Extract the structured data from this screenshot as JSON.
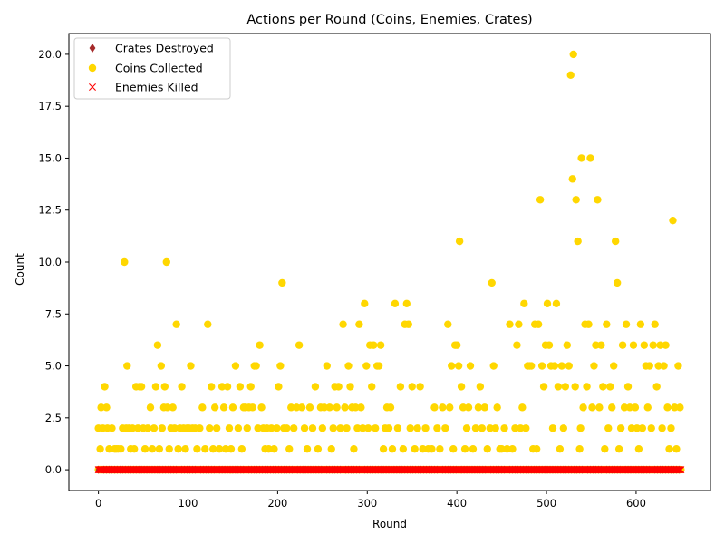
{
  "chart_data": {
    "type": "scatter",
    "title": "Actions per Round (Coins, Enemies, Crates)",
    "xlabel": "Round",
    "ylabel": "Count",
    "xlim": [
      -33,
      683
    ],
    "ylim": [
      -1,
      21
    ],
    "xticks": [
      0,
      100,
      200,
      300,
      400,
      500,
      600
    ],
    "yticks": [
      0.0,
      2.5,
      5.0,
      7.5,
      10.0,
      12.5,
      15.0,
      17.5,
      20.0
    ],
    "grid": false,
    "legend_position": "top-left",
    "x_range": [
      0,
      650
    ],
    "series": [
      {
        "name": "Crates Destroyed",
        "marker": "diamond",
        "color": "#a52a2a",
        "values_note": "constant",
        "constant": 0
      },
      {
        "name": "Coins Collected",
        "marker": "circle",
        "color": "#ffd700",
        "points": [
          [
            0,
            2
          ],
          [
            2,
            1
          ],
          [
            3,
            3
          ],
          [
            5,
            2
          ],
          [
            7,
            4
          ],
          [
            9,
            3
          ],
          [
            10,
            2
          ],
          [
            12,
            1
          ],
          [
            15,
            2
          ],
          [
            18,
            1
          ],
          [
            20,
            1
          ],
          [
            22,
            1
          ],
          [
            25,
            1
          ],
          [
            27,
            2
          ],
          [
            29,
            10
          ],
          [
            31,
            2
          ],
          [
            32,
            5
          ],
          [
            34,
            2
          ],
          [
            36,
            1
          ],
          [
            38,
            2
          ],
          [
            40,
            1
          ],
          [
            42,
            4
          ],
          [
            44,
            2
          ],
          [
            46,
            4
          ],
          [
            48,
            4
          ],
          [
            50,
            2
          ],
          [
            52,
            1
          ],
          [
            55,
            2
          ],
          [
            58,
            3
          ],
          [
            60,
            1
          ],
          [
            62,
            2
          ],
          [
            64,
            4
          ],
          [
            66,
            6
          ],
          [
            68,
            1
          ],
          [
            70,
            5
          ],
          [
            71,
            2
          ],
          [
            73,
            3
          ],
          [
            74,
            4
          ],
          [
            76,
            10
          ],
          [
            77,
            3
          ],
          [
            79,
            1
          ],
          [
            81,
            2
          ],
          [
            83,
            3
          ],
          [
            85,
            2
          ],
          [
            87,
            7
          ],
          [
            89,
            1
          ],
          [
            91,
            2
          ],
          [
            93,
            4
          ],
          [
            95,
            2
          ],
          [
            97,
            1
          ],
          [
            99,
            2
          ],
          [
            101,
            2
          ],
          [
            103,
            5
          ],
          [
            105,
            2
          ],
          [
            108,
            2
          ],
          [
            110,
            1
          ],
          [
            113,
            2
          ],
          [
            116,
            3
          ],
          [
            119,
            1
          ],
          [
            122,
            7
          ],
          [
            124,
            2
          ],
          [
            126,
            4
          ],
          [
            128,
            1
          ],
          [
            130,
            3
          ],
          [
            132,
            2
          ],
          [
            135,
            1
          ],
          [
            138,
            4
          ],
          [
            140,
            3
          ],
          [
            142,
            1
          ],
          [
            144,
            4
          ],
          [
            146,
            2
          ],
          [
            148,
            1
          ],
          [
            150,
            3
          ],
          [
            153,
            5
          ],
          [
            156,
            2
          ],
          [
            158,
            4
          ],
          [
            160,
            1
          ],
          [
            162,
            3
          ],
          [
            164,
            3
          ],
          [
            166,
            2
          ],
          [
            168,
            3
          ],
          [
            170,
            4
          ],
          [
            172,
            3
          ],
          [
            174,
            5
          ],
          [
            176,
            5
          ],
          [
            178,
            2
          ],
          [
            180,
            6
          ],
          [
            182,
            3
          ],
          [
            184,
            2
          ],
          [
            186,
            1
          ],
          [
            188,
            2
          ],
          [
            190,
            1
          ],
          [
            193,
            2
          ],
          [
            196,
            1
          ],
          [
            199,
            2
          ],
          [
            201,
            4
          ],
          [
            203,
            5
          ],
          [
            205,
            9
          ],
          [
            207,
            2
          ],
          [
            210,
            2
          ],
          [
            213,
            1
          ],
          [
            215,
            3
          ],
          [
            218,
            2
          ],
          [
            221,
            3
          ],
          [
            224,
            6
          ],
          [
            227,
            3
          ],
          [
            230,
            2
          ],
          [
            233,
            1
          ],
          [
            236,
            3
          ],
          [
            239,
            2
          ],
          [
            242,
            4
          ],
          [
            245,
            1
          ],
          [
            248,
            3
          ],
          [
            250,
            2
          ],
          [
            252,
            3
          ],
          [
            255,
            5
          ],
          [
            258,
            3
          ],
          [
            260,
            1
          ],
          [
            262,
            2
          ],
          [
            264,
            4
          ],
          [
            266,
            3
          ],
          [
            268,
            4
          ],
          [
            270,
            2
          ],
          [
            273,
            7
          ],
          [
            275,
            3
          ],
          [
            277,
            2
          ],
          [
            279,
            5
          ],
          [
            281,
            4
          ],
          [
            283,
            3
          ],
          [
            285,
            1
          ],
          [
            287,
            3
          ],
          [
            289,
            2
          ],
          [
            291,
            7
          ],
          [
            293,
            3
          ],
          [
            295,
            2
          ],
          [
            297,
            8
          ],
          [
            299,
            5
          ],
          [
            301,
            2
          ],
          [
            303,
            6
          ],
          [
            305,
            4
          ],
          [
            307,
            6
          ],
          [
            309,
            2
          ],
          [
            311,
            5
          ],
          [
            313,
            5
          ],
          [
            315,
            6
          ],
          [
            318,
            1
          ],
          [
            320,
            2
          ],
          [
            322,
            3
          ],
          [
            324,
            2
          ],
          [
            326,
            3
          ],
          [
            328,
            1
          ],
          [
            331,
            8
          ],
          [
            334,
            2
          ],
          [
            337,
            4
          ],
          [
            340,
            1
          ],
          [
            342,
            7
          ],
          [
            344,
            8
          ],
          [
            346,
            7
          ],
          [
            348,
            2
          ],
          [
            350,
            4
          ],
          [
            353,
            1
          ],
          [
            356,
            2
          ],
          [
            359,
            4
          ],
          [
            362,
            1
          ],
          [
            365,
            2
          ],
          [
            368,
            1
          ],
          [
            372,
            1
          ],
          [
            375,
            3
          ],
          [
            378,
            2
          ],
          [
            381,
            1
          ],
          [
            384,
            3
          ],
          [
            387,
            2
          ],
          [
            390,
            7
          ],
          [
            392,
            3
          ],
          [
            394,
            5
          ],
          [
            396,
            1
          ],
          [
            398,
            6
          ],
          [
            400,
            6
          ],
          [
            402,
            5
          ],
          [
            403,
            11
          ],
          [
            405,
            4
          ],
          [
            407,
            3
          ],
          [
            409,
            1
          ],
          [
            411,
            2
          ],
          [
            413,
            3
          ],
          [
            415,
            5
          ],
          [
            418,
            1
          ],
          [
            421,
            2
          ],
          [
            424,
            3
          ],
          [
            426,
            4
          ],
          [
            428,
            2
          ],
          [
            431,
            3
          ],
          [
            434,
            1
          ],
          [
            437,
            2
          ],
          [
            439,
            9
          ],
          [
            441,
            5
          ],
          [
            443,
            2
          ],
          [
            445,
            3
          ],
          [
            448,
            1
          ],
          [
            450,
            1
          ],
          [
            453,
            2
          ],
          [
            456,
            1
          ],
          [
            459,
            7
          ],
          [
            462,
            1
          ],
          [
            465,
            2
          ],
          [
            467,
            6
          ],
          [
            469,
            7
          ],
          [
            471,
            2
          ],
          [
            473,
            3
          ],
          [
            475,
            8
          ],
          [
            477,
            2
          ],
          [
            479,
            5
          ],
          [
            481,
            5
          ],
          [
            483,
            5
          ],
          [
            485,
            1
          ],
          [
            487,
            7
          ],
          [
            489,
            1
          ],
          [
            491,
            7
          ],
          [
            493,
            13
          ],
          [
            495,
            5
          ],
          [
            497,
            4
          ],
          [
            499,
            6
          ],
          [
            501,
            8
          ],
          [
            503,
            6
          ],
          [
            505,
            5
          ],
          [
            507,
            2
          ],
          [
            509,
            5
          ],
          [
            511,
            8
          ],
          [
            513,
            4
          ],
          [
            515,
            1
          ],
          [
            517,
            5
          ],
          [
            519,
            2
          ],
          [
            521,
            4
          ],
          [
            523,
            6
          ],
          [
            525,
            5
          ],
          [
            527,
            19
          ],
          [
            529,
            14
          ],
          [
            530,
            20
          ],
          [
            532,
            4
          ],
          [
            533,
            13
          ],
          [
            535,
            11
          ],
          [
            537,
            1
          ],
          [
            538,
            2
          ],
          [
            539,
            15
          ],
          [
            541,
            3
          ],
          [
            543,
            7
          ],
          [
            545,
            4
          ],
          [
            547,
            7
          ],
          [
            549,
            15
          ],
          [
            551,
            3
          ],
          [
            553,
            5
          ],
          [
            555,
            6
          ],
          [
            557,
            13
          ],
          [
            559,
            3
          ],
          [
            561,
            6
          ],
          [
            563,
            4
          ],
          [
            565,
            1
          ],
          [
            567,
            7
          ],
          [
            569,
            2
          ],
          [
            571,
            4
          ],
          [
            573,
            3
          ],
          [
            575,
            5
          ],
          [
            577,
            11
          ],
          [
            579,
            9
          ],
          [
            581,
            1
          ],
          [
            583,
            2
          ],
          [
            585,
            6
          ],
          [
            587,
            3
          ],
          [
            589,
            7
          ],
          [
            591,
            4
          ],
          [
            593,
            3
          ],
          [
            595,
            2
          ],
          [
            597,
            6
          ],
          [
            599,
            3
          ],
          [
            601,
            2
          ],
          [
            603,
            1
          ],
          [
            605,
            7
          ],
          [
            607,
            2
          ],
          [
            609,
            6
          ],
          [
            611,
            5
          ],
          [
            613,
            3
          ],
          [
            615,
            5
          ],
          [
            617,
            2
          ],
          [
            619,
            6
          ],
          [
            621,
            7
          ],
          [
            623,
            4
          ],
          [
            625,
            5
          ],
          [
            627,
            6
          ],
          [
            629,
            2
          ],
          [
            631,
            5
          ],
          [
            633,
            6
          ],
          [
            635,
            3
          ],
          [
            637,
            1
          ],
          [
            639,
            2
          ],
          [
            641,
            12
          ],
          [
            643,
            3
          ],
          [
            645,
            1
          ],
          [
            647,
            5
          ],
          [
            649,
            3
          ]
        ]
      },
      {
        "name": "Enemies Killed",
        "marker": "x",
        "color": "#ff0000",
        "values_note": "constant",
        "constant": 0
      }
    ]
  }
}
